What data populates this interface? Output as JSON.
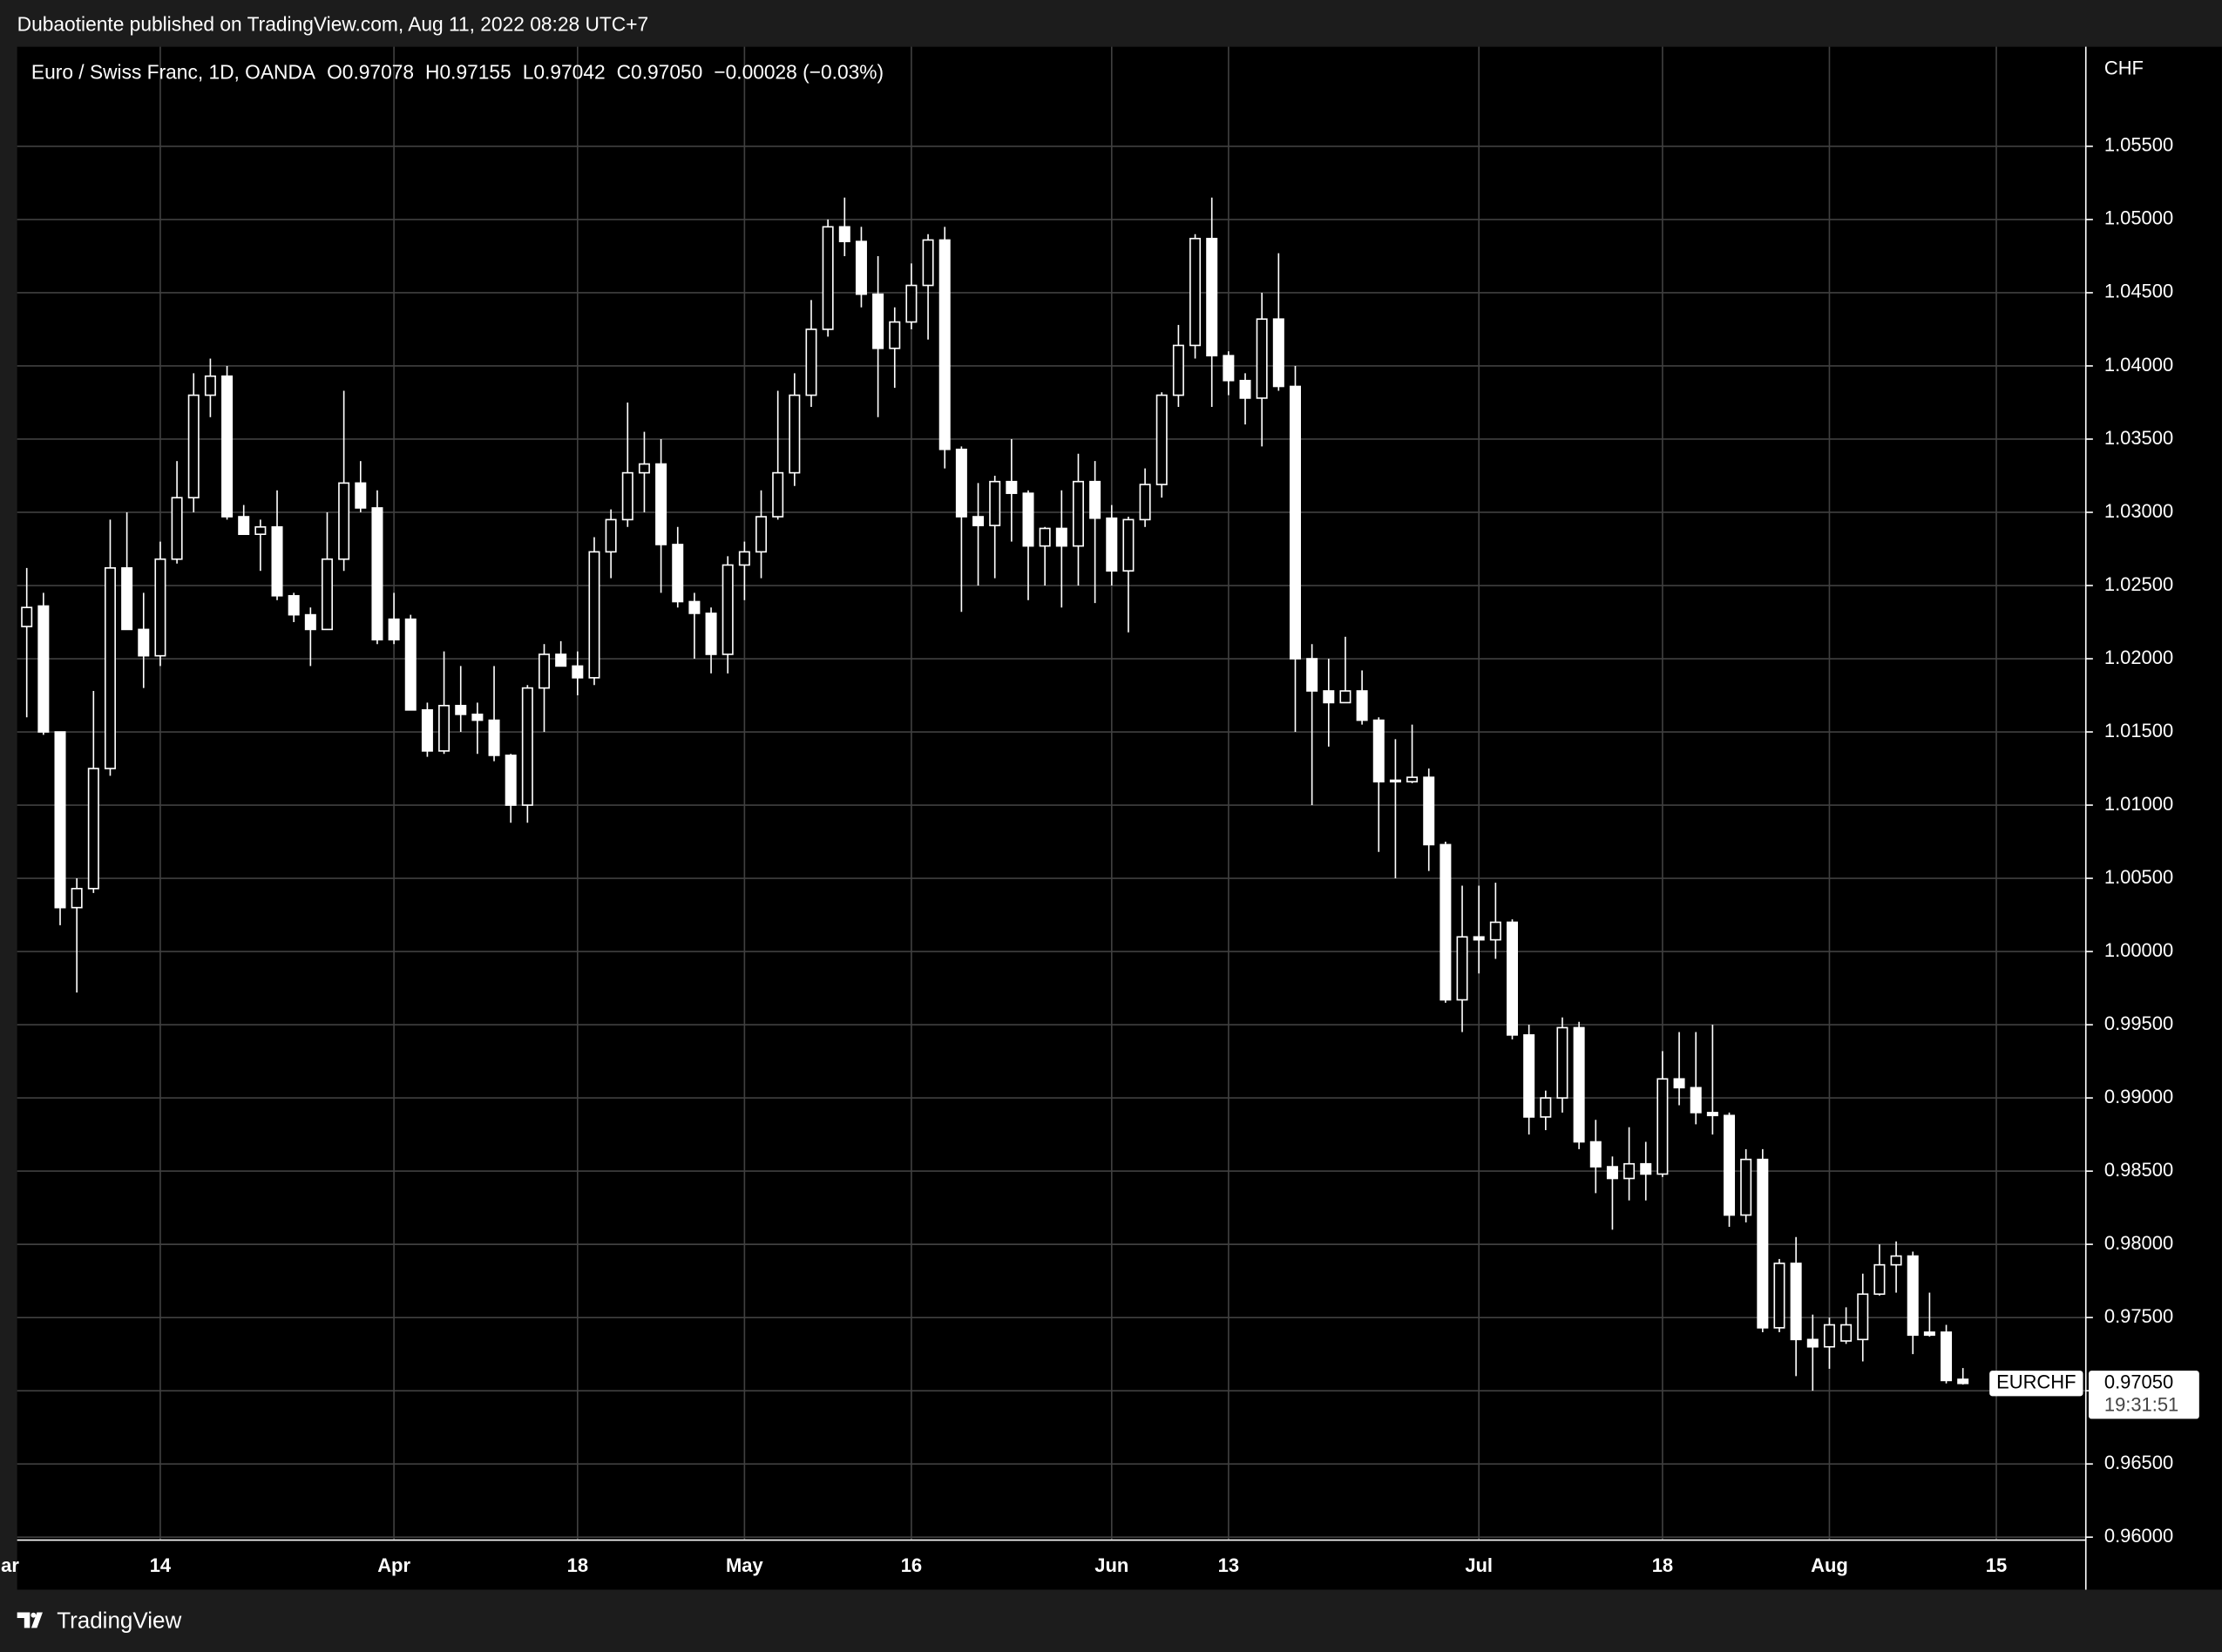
{
  "published": "Dubaotiente published on TradingView.com, Aug 11, 2022 08:28 UTC+7",
  "footer": "TradingView",
  "chart_data": {
    "type": "candlestick",
    "title": "Euro / Swiss Franc, 1D, OANDA",
    "ohlc_text": [
      "O0.97078",
      "H0.97155",
      "L0.97042",
      "C0.97050",
      "−0.00028 (−0.03%)"
    ],
    "y_axis_unit": "CHF",
    "symbol": "EURCHF",
    "countdown": "19:31:51",
    "last_price": {
      "value": 0.9705,
      "label": "0.97050"
    },
    "grid": true,
    "colors": {
      "up_body": "#000000",
      "down_body": "#ffffff",
      "border": "#ffffff",
      "wick": "#ffffff",
      "grid": "#404040"
    },
    "ylim": [
      0.9598,
      1.0618
    ],
    "yticks": [
      {
        "value": 0.96,
        "label": "0.96000"
      },
      {
        "value": 0.965,
        "label": "0.96500"
      },
      {
        "value": 0.97,
        "label": "0.97000"
      },
      {
        "value": 0.975,
        "label": "0.97500"
      },
      {
        "value": 0.98,
        "label": "0.98000"
      },
      {
        "value": 0.985,
        "label": "0.98500"
      },
      {
        "value": 0.99,
        "label": "0.99000"
      },
      {
        "value": 0.995,
        "label": "0.99500"
      },
      {
        "value": 1.0,
        "label": "1.00000"
      },
      {
        "value": 1.005,
        "label": "1.00500"
      },
      {
        "value": 1.01,
        "label": "1.01000"
      },
      {
        "value": 1.015,
        "label": "1.01500"
      },
      {
        "value": 1.02,
        "label": "1.02000"
      },
      {
        "value": 1.025,
        "label": "1.02500"
      },
      {
        "value": 1.03,
        "label": "1.03000"
      },
      {
        "value": 1.035,
        "label": "1.03500"
      },
      {
        "value": 1.04,
        "label": "1.04000"
      },
      {
        "value": 1.045,
        "label": "1.04500"
      },
      {
        "value": 1.05,
        "label": "1.05000"
      },
      {
        "value": 1.055,
        "label": "1.05500"
      }
    ],
    "categories": [
      "ar",
      null,
      null,
      null,
      null,
      null,
      null,
      null,
      null,
      "14",
      null,
      null,
      null,
      null,
      null,
      null,
      null,
      null,
      null,
      null,
      null,
      null,
      null,
      "Apr",
      null,
      null,
      null,
      null,
      null,
      null,
      null,
      null,
      null,
      null,
      "18",
      null,
      null,
      null,
      null,
      null,
      null,
      null,
      null,
      null,
      "May",
      null,
      null,
      null,
      null,
      null,
      null,
      null,
      null,
      null,
      "16",
      null,
      null,
      null,
      null,
      null,
      null,
      null,
      null,
      null,
      null,
      null,
      "Jun",
      null,
      null,
      null,
      null,
      null,
      null,
      "13",
      null,
      null,
      null,
      null,
      null,
      null,
      null,
      null,
      null,
      null,
      null,
      null,
      null,
      null,
      "Jul",
      null,
      null,
      null,
      null,
      null,
      null,
      null,
      null,
      null,
      null,
      "18",
      null,
      null,
      null,
      null,
      null,
      null,
      null,
      null,
      null,
      "Aug",
      null,
      null,
      null,
      null,
      null,
      null,
      null,
      null,
      null,
      "15"
    ],
    "open": [
      null,
      1.0222,
      1.0236,
      1.015,
      1.003,
      1.0043,
      1.0125,
      1.0262,
      1.022,
      1.0202,
      1.0268,
      1.031,
      1.038,
      1.0393,
      1.0297,
      1.0285,
      1.029,
      1.0243,
      1.023,
      1.022,
      1.0268,
      1.032,
      1.0303,
      1.0227,
      1.0227,
      1.0165,
      1.0137,
      1.0168,
      1.0162,
      1.0158,
      1.0134,
      1.01,
      1.018,
      1.0203,
      1.0195,
      1.0187,
      1.0273,
      1.0295,
      1.0327,
      1.0333,
      1.0278,
      1.0239,
      1.0231,
      1.0203,
      1.0264,
      1.0273,
      1.0297,
      1.0327,
      1.038,
      1.0425,
      1.0495,
      1.0485,
      1.0449,
      1.0412,
      1.043,
      1.0455,
      1.0486,
      1.0343,
      1.0297,
      1.0291,
      1.0321,
      1.0313,
      1.0277,
      1.0289,
      1.0277,
      1.0321,
      1.0296,
      1.026,
      1.0295,
      1.0319,
      1.038,
      1.0414,
      1.0487,
      1.0407,
      1.039,
      1.0378,
      1.0432,
      1.0386,
      1.02,
      1.0178,
      1.017,
      1.0178,
      1.0158,
      1.0117,
      1.0116,
      1.0119,
      1.0073,
      0.9967,
      1.001,
      1.0008,
      1.002,
      0.9943,
      0.9887,
      0.99,
      0.9948,
      0.987,
      0.9853,
      0.9845,
      0.9855,
      0.9848,
      0.9913,
      0.9907,
      0.989,
      0.9888,
      0.982,
      0.9858,
      0.9743,
      0.9787,
      0.9735,
      0.973,
      0.9734,
      0.9735,
      0.9766,
      0.9786,
      0.9792,
      0.974,
      0.974,
      0.97078,
      null,
      null
    ],
    "high": [
      null,
      1.0262,
      1.0245,
      1.015,
      1.005,
      1.0178,
      1.0295,
      1.03,
      1.0245,
      1.028,
      1.0335,
      1.0395,
      1.0405,
      1.04,
      1.0305,
      1.0295,
      1.0315,
      1.0245,
      1.0235,
      1.03,
      1.0383,
      1.0335,
      1.0315,
      1.0245,
      1.023,
      1.017,
      1.0205,
      1.0195,
      1.017,
      1.0195,
      1.0135,
      1.0182,
      1.021,
      1.0212,
      1.0205,
      1.0283,
      1.0302,
      1.0375,
      1.0355,
      1.035,
      1.029,
      1.0245,
      1.0235,
      1.027,
      1.028,
      1.0315,
      1.0383,
      1.0395,
      1.0445,
      1.05,
      1.0515,
      1.0495,
      1.0475,
      1.044,
      1.047,
      1.049,
      1.0495,
      1.0345,
      1.032,
      1.0325,
      1.035,
      1.0315,
      1.029,
      1.0315,
      1.034,
      1.0335,
      1.0305,
      1.0297,
      1.033,
      1.0382,
      1.0428,
      1.049,
      1.0515,
      1.041,
      1.0395,
      1.045,
      1.0477,
      1.04,
      1.021,
      1.02,
      1.0215,
      1.0192,
      1.016,
      1.0145,
      1.0155,
      1.0125,
      1.0075,
      1.0045,
      1.0045,
      1.0047,
      1.0022,
      0.995,
      0.9905,
      0.9955,
      0.9952,
      0.9885,
      0.986,
      0.988,
      0.987,
      0.9932,
      0.9945,
      0.9945,
      0.995,
      0.989,
      0.9865,
      0.9865,
      0.979,
      0.9805,
      0.9752,
      0.975,
      0.9757,
      0.978,
      0.98,
      0.9802,
      0.9795,
      0.9767,
      0.9745,
      0.97155,
      null,
      null
    ],
    "low": [
      null,
      1.016,
      1.0148,
      1.0018,
      0.9972,
      1.004,
      1.012,
      1.022,
      1.018,
      1.0195,
      1.0265,
      1.03,
      1.0365,
      1.0295,
      1.0285,
      1.026,
      1.024,
      1.0225,
      1.0195,
      1.022,
      1.026,
      1.03,
      1.021,
      1.021,
      1.0165,
      1.0133,
      1.0135,
      1.015,
      1.0135,
      1.013,
      1.0088,
      1.0088,
      1.015,
      1.0195,
      1.0175,
      1.0182,
      1.0255,
      1.029,
      1.03,
      1.0245,
      1.0235,
      1.02,
      1.019,
      1.019,
      1.024,
      1.0255,
      1.0295,
      1.0318,
      1.0372,
      1.042,
      1.0475,
      1.044,
      1.0365,
      1.0385,
      1.0425,
      1.0418,
      1.033,
      1.0232,
      1.025,
      1.0255,
      1.028,
      1.024,
      1.025,
      1.0235,
      1.025,
      1.0238,
      1.025,
      1.0218,
      1.029,
      1.031,
      1.0372,
      1.0405,
      1.0372,
      1.038,
      1.036,
      1.0345,
      1.0383,
      1.015,
      1.01,
      1.014,
      1.017,
      1.0155,
      1.0068,
      1.005,
      1.0115,
      1.0055,
      0.9965,
      0.9945,
      0.9985,
      0.9995,
      0.994,
      0.9875,
      0.9878,
      0.989,
      0.9865,
      0.9835,
      0.981,
      0.983,
      0.983,
      0.9846,
      0.9895,
      0.9882,
      0.9875,
      0.9812,
      0.9815,
      0.974,
      0.974,
      0.971,
      0.97,
      0.9715,
      0.9732,
      0.972,
      0.9765,
      0.9767,
      0.9725,
      0.9737,
      0.9705,
      0.97042,
      null,
      null
    ],
    "close": [
      null,
      1.0235,
      1.015,
      1.003,
      1.0043,
      1.0125,
      1.0262,
      1.022,
      1.0202,
      1.0268,
      1.031,
      1.038,
      1.0393,
      1.0297,
      1.0285,
      1.029,
      1.0243,
      1.023,
      1.022,
      1.0268,
      1.032,
      1.0303,
      1.0213,
      1.0213,
      1.0165,
      1.0137,
      1.0168,
      1.0162,
      1.0158,
      1.0134,
      1.01,
      1.018,
      1.0203,
      1.0195,
      1.0187,
      1.0273,
      1.0295,
      1.0327,
      1.0333,
      1.0278,
      1.0239,
      1.0231,
      1.0203,
      1.0264,
      1.0273,
      1.0297,
      1.0327,
      1.038,
      1.0425,
      1.0495,
      1.0485,
      1.0449,
      1.0412,
      1.043,
      1.0455,
      1.0486,
      1.0343,
      1.0297,
      1.0291,
      1.0321,
      1.0313,
      1.0277,
      1.0289,
      1.0277,
      1.0321,
      1.0296,
      1.026,
      1.0295,
      1.0319,
      1.038,
      1.0414,
      1.0487,
      1.0407,
      1.039,
      1.0378,
      1.0432,
      1.0386,
      1.02,
      1.0178,
      1.017,
      1.0178,
      1.0158,
      1.0116,
      1.0116,
      1.0119,
      1.0073,
      0.9967,
      1.001,
      1.0008,
      1.002,
      0.9943,
      0.9887,
      0.99,
      0.9948,
      0.987,
      0.9853,
      0.9845,
      0.9855,
      0.9848,
      0.9913,
      0.9907,
      0.989,
      0.9888,
      0.982,
      0.9858,
      0.9743,
      0.9787,
      0.9735,
      0.973,
      0.9745,
      0.9745,
      0.9766,
      0.9786,
      0.9792,
      0.9738,
      0.9738,
      0.9707,
      0.9705,
      null,
      null
    ]
  }
}
